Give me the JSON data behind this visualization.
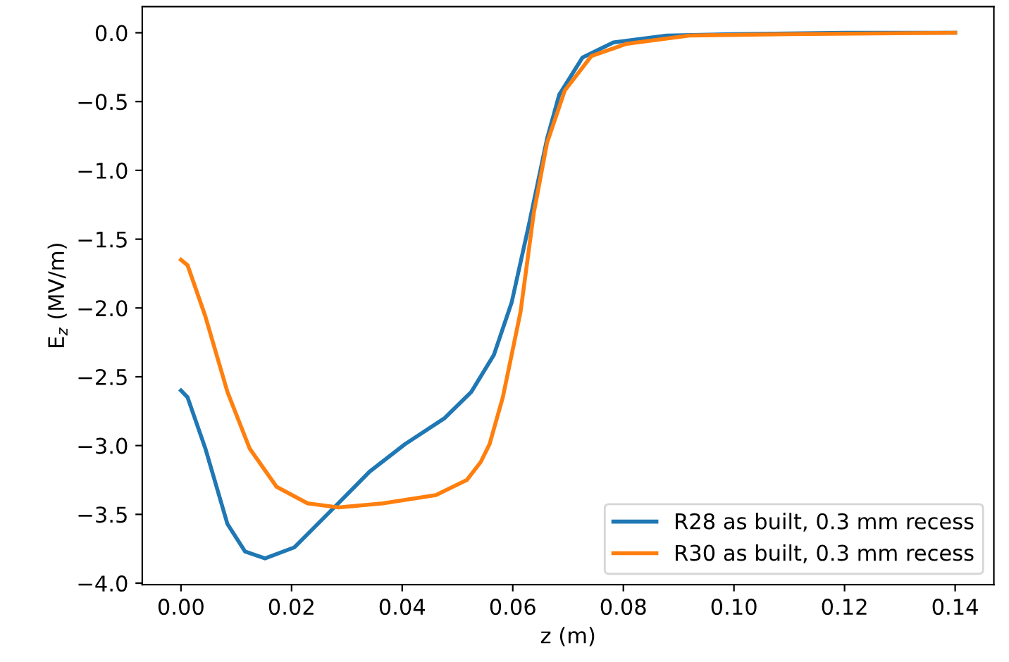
{
  "chart_data": {
    "type": "line",
    "xlabel": "z (m)",
    "ylabel": "E$_{z}$ (MV/m)",
    "xlim": [
      -0.007,
      0.147
    ],
    "ylim": [
      -4.01,
      0.19
    ],
    "xticks": [
      {
        "value": 0,
        "label": "0.00"
      },
      {
        "value": 0.02,
        "label": "0.02"
      },
      {
        "value": 0.04,
        "label": "0.04"
      },
      {
        "value": 0.06,
        "label": "0.06"
      },
      {
        "value": 0.08,
        "label": "0.08"
      },
      {
        "value": 0.1,
        "label": "0.10"
      },
      {
        "value": 0.12,
        "label": "0.12"
      },
      {
        "value": 0.14,
        "label": "0.14"
      }
    ],
    "yticks": [
      {
        "value": 0,
        "label": "0.0"
      },
      {
        "value": -0.5,
        "label": "−0.5"
      },
      {
        "value": -1,
        "label": "−1.0"
      },
      {
        "value": -1.5,
        "label": "−1.5"
      },
      {
        "value": -2,
        "label": "−2.0"
      },
      {
        "value": -2.5,
        "label": "−2.5"
      },
      {
        "value": -3,
        "label": "−3.0"
      },
      {
        "value": -3.5,
        "label": "−3.5"
      },
      {
        "value": -4,
        "label": "−4.0"
      }
    ],
    "grid": false,
    "legend": "bottom right",
    "line_style": "solid",
    "marker": "none",
    "series": [
      {
        "name": "R28 as built, 0.3 mm recess",
        "color": "#1f77b4",
        "x": [
          0,
          0.0012,
          0.0044,
          0.0084,
          0.0116,
          0.0152,
          0.0205,
          0.0277,
          0.0341,
          0.0405,
          0.0477,
          0.0525,
          0.0566,
          0.0598,
          0.063,
          0.0662,
          0.0684,
          0.0726,
          0.0782,
          0.0878,
          0.1,
          0.12,
          0.14
        ],
        "values": [
          -2.6,
          -2.65,
          -3.02,
          -3.57,
          -3.77,
          -3.82,
          -3.74,
          -3.45,
          -3.19,
          -2.99,
          -2.8,
          -2.61,
          -2.34,
          -1.96,
          -1.38,
          -0.77,
          -0.45,
          -0.18,
          -0.07,
          -0.02,
          -0.01,
          0,
          0
        ]
      },
      {
        "name": "R30 as built, 0.3 mm recess",
        "color": "#ff7f0e",
        "x": [
          0,
          0.0012,
          0.0044,
          0.0084,
          0.0124,
          0.0173,
          0.0229,
          0.0285,
          0.0365,
          0.0461,
          0.0517,
          0.0542,
          0.0558,
          0.0582,
          0.0614,
          0.0638,
          0.0662,
          0.0694,
          0.0742,
          0.0806,
          0.0919,
          0.11,
          0.14
        ],
        "values": [
          -1.65,
          -1.69,
          -2.06,
          -2.61,
          -3.02,
          -3.3,
          -3.42,
          -3.45,
          -3.42,
          -3.36,
          -3.25,
          -3.12,
          -2.99,
          -2.65,
          -2.03,
          -1.31,
          -0.8,
          -0.42,
          -0.17,
          -0.08,
          -0.02,
          -0.01,
          0
        ]
      }
    ]
  }
}
